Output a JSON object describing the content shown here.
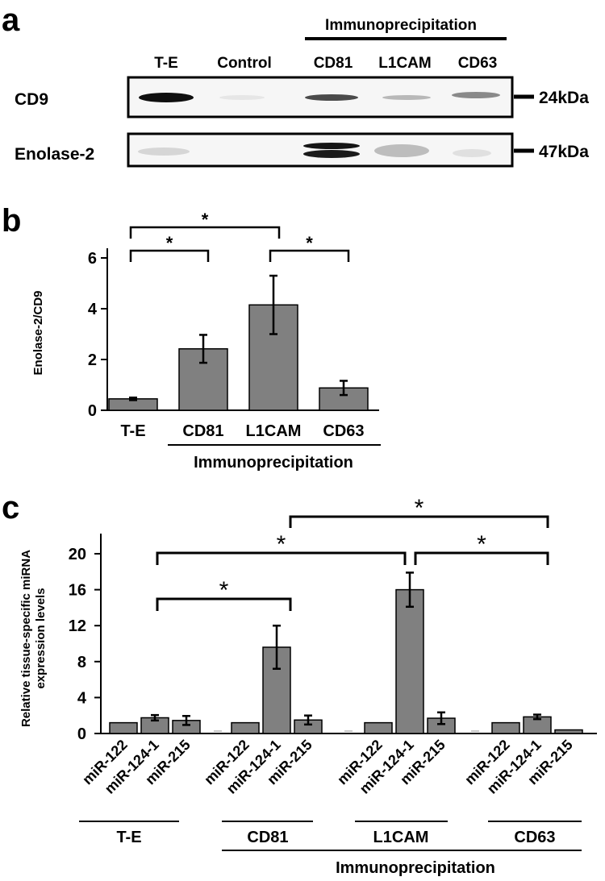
{
  "panel_a": {
    "label": "a",
    "group_header": "Immunoprecipitation",
    "lanes": [
      "T-E",
      "Control",
      "CD81",
      "L1CAM",
      "CD63"
    ],
    "rows": [
      {
        "protein": "CD9",
        "marker": "24kDa"
      },
      {
        "protein": "Enolase-2",
        "marker": "47kDa"
      }
    ]
  },
  "chart_data": [
    {
      "panel": "b",
      "type": "bar",
      "categories": [
        "T-E",
        "CD81",
        "L1CAM",
        "CD63"
      ],
      "values": [
        0.45,
        2.42,
        4.15,
        0.88
      ],
      "errors": [
        0.05,
        0.55,
        1.15,
        0.28
      ],
      "ylabel": "Enolase-2/CD9",
      "yticks": [
        "0",
        "2",
        "4",
        "6"
      ],
      "ylim": [
        0,
        6.5
      ],
      "xgroup_label": "Immunoprecipitation",
      "significance": [
        {
          "from": "T-E",
          "to": "CD81",
          "label": "*"
        },
        {
          "from": "T-E",
          "to": "L1CAM",
          "label": "*"
        },
        {
          "from": "L1CAM",
          "to": "CD63",
          "label": "*"
        }
      ]
    },
    {
      "panel": "c",
      "type": "bar",
      "groups": [
        "T-E",
        "CD81",
        "L1CAM",
        "CD63"
      ],
      "categories": [
        "miR-122",
        "miR-124-1",
        "miR-215"
      ],
      "series": [
        {
          "group": "T-E",
          "values": [
            1.2,
            1.75,
            1.45
          ],
          "errors": [
            0.05,
            0.3,
            0.5
          ]
        },
        {
          "group": "CD81",
          "values": [
            1.2,
            9.6,
            1.5
          ],
          "errors": [
            0.05,
            2.4,
            0.5
          ]
        },
        {
          "group": "L1CAM",
          "values": [
            1.2,
            16.0,
            1.7
          ],
          "errors": [
            0.05,
            1.9,
            0.65
          ]
        },
        {
          "group": "CD63",
          "values": [
            1.2,
            1.85,
            0.4
          ],
          "errors": [
            0.05,
            0.25,
            0.05
          ]
        }
      ],
      "ylabel": "Relative tissue-specific miRNA expression levels",
      "yticks": [
        "0",
        "4",
        "8",
        "12",
        "16",
        "20"
      ],
      "ylim": [
        0,
        22
      ],
      "xgroup_label": "Immunoprecipitation",
      "significance": [
        {
          "from": "T-E miR-124-1",
          "to": "CD81 miR-124-1",
          "label": "*"
        },
        {
          "from": "T-E miR-124-1",
          "to": "L1CAM miR-124-1",
          "label": "*"
        },
        {
          "from": "CD81 miR-124-1",
          "to": "CD63 miR-124-1",
          "label": "*"
        },
        {
          "from": "L1CAM miR-124-1",
          "to": "CD63 miR-124-1",
          "label": "*"
        }
      ]
    }
  ],
  "panel_labels": {
    "b": "b",
    "c": "c"
  },
  "colors": {
    "bar": "#808080",
    "axis": "#000000",
    "blot_bg": "#f7f7f7",
    "band": "#111111"
  }
}
